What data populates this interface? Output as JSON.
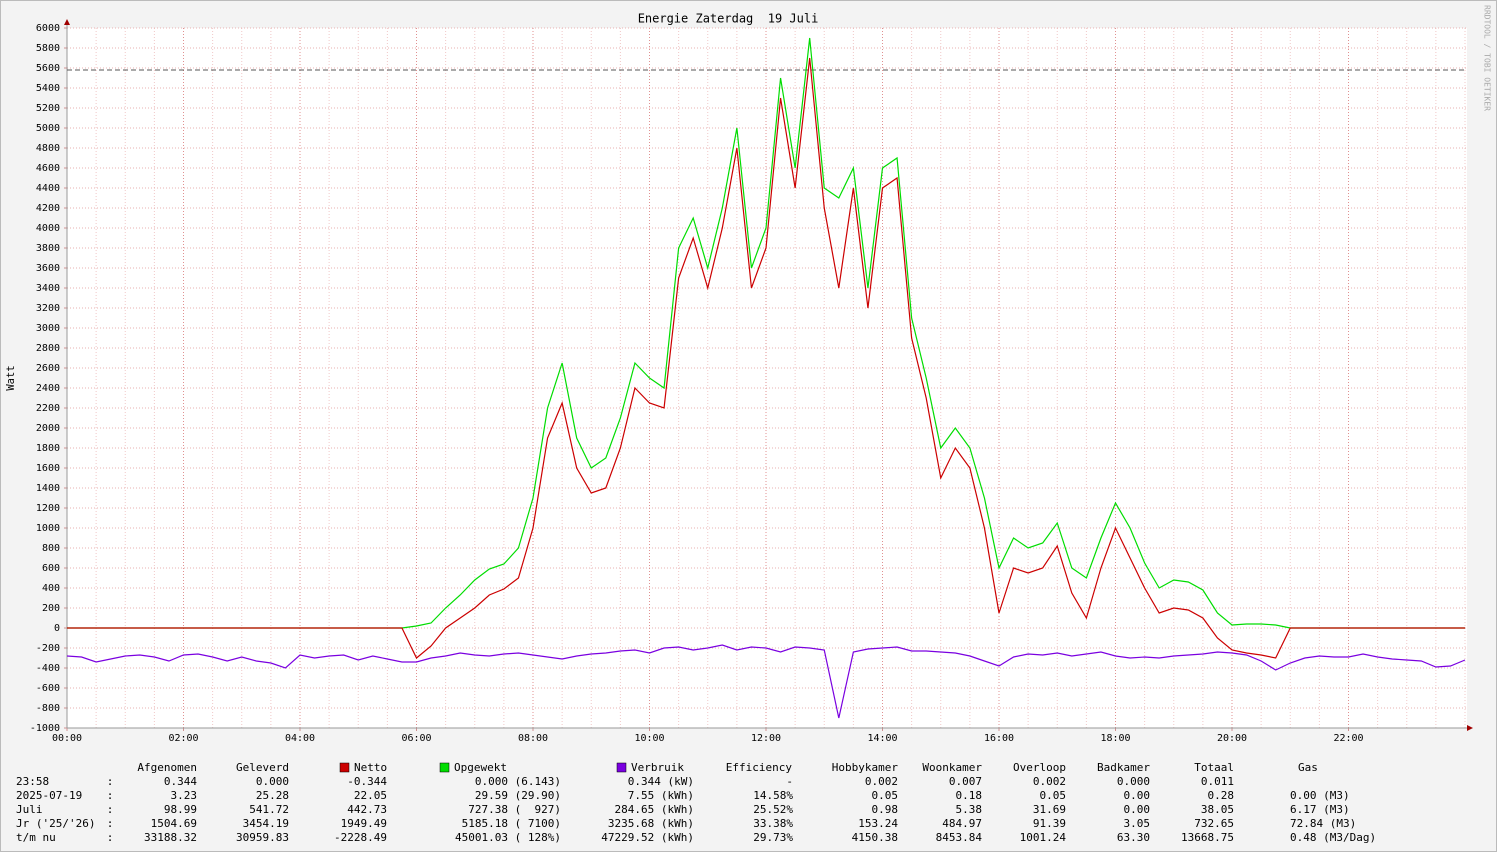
{
  "chart_data": {
    "type": "line",
    "title": "Energie Zaterdag  19 Juli",
    "ylabel": "Watt",
    "watermark": "RRDTOOL / TOBI OETIKER",
    "x": [
      0,
      0.25,
      0.5,
      0.75,
      1,
      1.25,
      1.5,
      1.75,
      2,
      2.25,
      2.5,
      2.75,
      3,
      3.25,
      3.5,
      3.75,
      4,
      4.25,
      4.5,
      4.75,
      5,
      5.25,
      5.5,
      5.75,
      6,
      6.25,
      6.5,
      6.75,
      7,
      7.25,
      7.5,
      7.75,
      8,
      8.25,
      8.5,
      8.75,
      9,
      9.25,
      9.5,
      9.75,
      10,
      10.25,
      10.5,
      10.75,
      11,
      11.25,
      11.5,
      11.75,
      12,
      12.25,
      12.5,
      12.75,
      13,
      13.25,
      13.5,
      13.75,
      14,
      14.25,
      14.5,
      14.75,
      15,
      15.25,
      15.5,
      15.75,
      16,
      16.25,
      16.5,
      16.75,
      17,
      17.25,
      17.5,
      17.75,
      18,
      18.25,
      18.5,
      18.75,
      19,
      19.25,
      19.5,
      19.75,
      20,
      20.25,
      20.5,
      20.75,
      21,
      21.25,
      21.5,
      21.75,
      22,
      22.25,
      22.5,
      22.75,
      23,
      23.25,
      23.5,
      23.75,
      24
    ],
    "series": [
      {
        "name": "Netto",
        "color": "#cc0000",
        "values": [
          0,
          0,
          0,
          0,
          0,
          0,
          0,
          0,
          0,
          0,
          0,
          0,
          0,
          0,
          0,
          0,
          0,
          0,
          0,
          0,
          0,
          0,
          0,
          0,
          -300,
          -180,
          0,
          100,
          200,
          330,
          390,
          500,
          1000,
          1900,
          2250,
          1600,
          1350,
          1400,
          1800,
          2400,
          2250,
          2200,
          3500,
          3900,
          3400,
          4000,
          4800,
          3400,
          3800,
          5300,
          4400,
          5700,
          4200,
          3400,
          4400,
          3200,
          4400,
          4500,
          2900,
          2300,
          1500,
          1800,
          1600,
          1000,
          150,
          600,
          550,
          600,
          820,
          350,
          100,
          600,
          1000,
          700,
          400,
          150,
          200,
          180,
          100,
          -100,
          -220,
          -250,
          -270,
          -300,
          0,
          0,
          0,
          0,
          0,
          0,
          0,
          0,
          0,
          0,
          0,
          0,
          0
        ]
      },
      {
        "name": "Opgewekt",
        "color": "#00dd00",
        "values": [
          0,
          0,
          0,
          0,
          0,
          0,
          0,
          0,
          0,
          0,
          0,
          0,
          0,
          0,
          0,
          0,
          0,
          0,
          0,
          0,
          0,
          0,
          0,
          0,
          20,
          50,
          200,
          330,
          480,
          590,
          640,
          800,
          1300,
          2200,
          2650,
          1900,
          1600,
          1700,
          2100,
          2650,
          2500,
          2400,
          3800,
          4100,
          3600,
          4200,
          5000,
          3600,
          4000,
          5500,
          4600,
          5900,
          4400,
          4300,
          4600,
          3400,
          4600,
          4700,
          3100,
          2500,
          1800,
          2000,
          1800,
          1300,
          600,
          900,
          800,
          850,
          1050,
          600,
          500,
          900,
          1250,
          1000,
          650,
          400,
          480,
          460,
          380,
          150,
          30,
          40,
          40,
          30,
          0,
          0,
          0,
          0,
          0,
          0,
          0,
          0,
          0,
          0,
          0,
          0,
          0
        ]
      },
      {
        "name": "Verbruik",
        "color": "#7a00e0",
        "values": [
          -280,
          -290,
          -340,
          -310,
          -280,
          -270,
          -290,
          -330,
          -270,
          -260,
          -290,
          -330,
          -290,
          -330,
          -350,
          -400,
          -270,
          -300,
          -280,
          -270,
          -320,
          -280,
          -310,
          -340,
          -340,
          -300,
          -280,
          -250,
          -270,
          -280,
          -260,
          -250,
          -270,
          -290,
          -310,
          -280,
          -260,
          -250,
          -230,
          -220,
          -250,
          -200,
          -190,
          -220,
          -200,
          -170,
          -220,
          -190,
          -200,
          -240,
          -190,
          -200,
          -220,
          -900,
          -240,
          -210,
          -200,
          -190,
          -230,
          -230,
          -240,
          -250,
          -280,
          -330,
          -380,
          -290,
          -260,
          -270,
          -250,
          -280,
          -260,
          -240,
          -280,
          -300,
          -290,
          -300,
          -280,
          -270,
          -260,
          -240,
          -250,
          -270,
          -330,
          -420,
          -350,
          -300,
          -280,
          -290,
          -290,
          -260,
          -290,
          -310,
          -320,
          -330,
          -390,
          -380,
          -320
        ]
      }
    ],
    "reference_line": 5580,
    "xlim": [
      0,
      24
    ],
    "xticks": [
      {
        "value": 0,
        "label": "00:00"
      },
      {
        "value": 2,
        "label": "02:00"
      },
      {
        "value": 4,
        "label": "04:00"
      },
      {
        "value": 6,
        "label": "06:00"
      },
      {
        "value": 8,
        "label": "08:00"
      },
      {
        "value": 10,
        "label": "10:00"
      },
      {
        "value": 12,
        "label": "12:00"
      },
      {
        "value": 14,
        "label": "14:00"
      },
      {
        "value": 16,
        "label": "16:00"
      },
      {
        "value": 18,
        "label": "18:00"
      },
      {
        "value": 20,
        "label": "20:00"
      },
      {
        "value": 22,
        "label": "22:00"
      }
    ],
    "ylim": [
      -1000,
      6000
    ],
    "yticks": [
      -1000,
      -800,
      -600,
      -400,
      -200,
      0,
      200,
      400,
      600,
      800,
      1000,
      1200,
      1400,
      1600,
      1800,
      2000,
      2200,
      2400,
      2600,
      2800,
      3000,
      3200,
      3400,
      3600,
      3800,
      4000,
      4200,
      4400,
      4600,
      4800,
      5000,
      5200,
      5400,
      5600,
      5800,
      6000
    ],
    "grid": true
  },
  "table": {
    "header": [
      "Afgenomen",
      "Geleverd",
      "Efficiency",
      "Hobbykamer",
      "Woonkamer",
      "Overloop",
      "Badkamer",
      "Totaal",
      "Gas"
    ],
    "rows": [
      [
        "23:58",
        ":",
        "0.344",
        "0.000",
        "-0.344",
        "0.000 (6.143)",
        "0.344 (kW)",
        "-",
        "0.002",
        "0.007",
        "0.002",
        "0.000",
        "0.011"
      ],
      [
        "2025-07-19",
        ":",
        "3.23",
        "25.28",
        "22.05",
        "29.59 (29.90)",
        "7.55 (kWh)",
        "14.58%",
        "0.05",
        "0.18",
        "0.05",
        "0.00",
        "0.28",
        "0.00 (M3)"
      ],
      [
        "Juli",
        ":",
        "98.99",
        "541.72",
        "442.73",
        "727.38 (  927)",
        "284.65 (kWh)",
        "25.52%",
        "0.98",
        "5.38",
        "31.69",
        "0.00",
        "38.05",
        "6.17 (M3)"
      ],
      [
        "Jr ('25/'26)",
        ":",
        "1504.69",
        "3454.19",
        "1949.49",
        "5185.18 ( 7100)",
        "3235.68 (kWh)",
        "33.38%",
        "153.24",
        "484.97",
        "91.39",
        "3.05",
        "732.65",
        "72.84 (M3)"
      ],
      [
        "t/m nu",
        ":",
        "33188.32",
        "30959.83",
        "-2228.49",
        "45001.03 ( 128%)",
        "47229.52 (kWh)",
        "29.73%",
        "4150.38",
        "8453.84",
        "1001.24",
        "63.30",
        "13668.75",
        "0.48 (M3/Dag)"
      ]
    ]
  }
}
